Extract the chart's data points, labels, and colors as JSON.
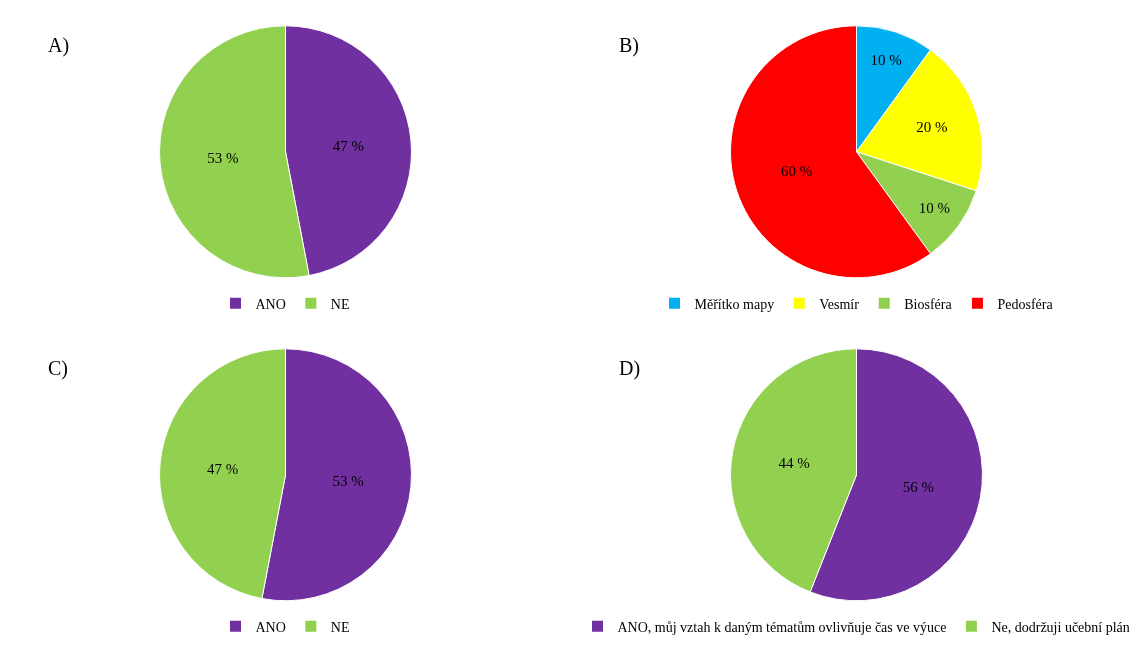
{
  "chart_data": [
    {
      "type": "pie",
      "title": "A)",
      "categories": [
        "ANO",
        "NE"
      ],
      "values": [
        47,
        53
      ],
      "colors": [
        "#7030a0",
        "#92d050"
      ],
      "value_labels": [
        "47 %",
        "53 %"
      ],
      "legend": "bottom"
    },
    {
      "type": "pie",
      "title": "B)",
      "categories": [
        "Měřítko mapy",
        "Vesmír",
        "Biosféra",
        "Pedosféra"
      ],
      "values": [
        10,
        20,
        10,
        60
      ],
      "colors": [
        "#00b0f0",
        "#ffff00",
        "#92d050",
        "#ff0000"
      ],
      "value_labels": [
        "10 %",
        "20 %",
        "10 %",
        "60 %"
      ],
      "legend": "bottom"
    },
    {
      "type": "pie",
      "title": "C)",
      "categories": [
        "ANO",
        "NE"
      ],
      "values": [
        53,
        47
      ],
      "colors": [
        "#7030a0",
        "#92d050"
      ],
      "value_labels": [
        "53 %",
        "47 %"
      ],
      "legend": "bottom"
    },
    {
      "type": "pie",
      "title": "D)",
      "categories": [
        "ANO, můj vztah k daným tématům ovlivňuje čas ve výuce",
        "Ne, dodržuji učební plán"
      ],
      "values": [
        56,
        44
      ],
      "colors": [
        "#7030a0",
        "#92d050"
      ],
      "value_labels": [
        "56 %",
        "44 %"
      ],
      "legend": "bottom"
    }
  ]
}
